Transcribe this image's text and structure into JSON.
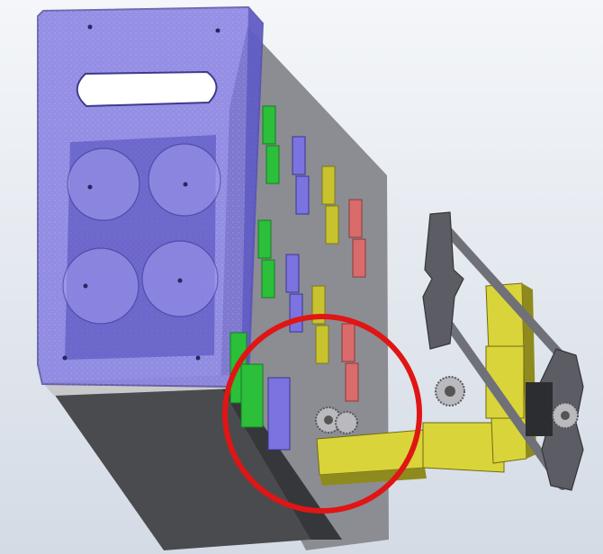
{
  "viewport": {
    "background_top": "#f4f6f9",
    "background_bottom": "#d4dbe5"
  },
  "scene": {
    "housing": {
      "front_color": "#7b74e0",
      "front_opacity": 0.78,
      "panel_color": "#8b8d93",
      "bottom_color": "#4a4b4f",
      "shelf_color": "#c9c9cc"
    },
    "compartments": {
      "green": "#2bbf3a",
      "purple": "#7b74e0",
      "yellow": "#c8c22e",
      "red": "#d96b6b"
    },
    "mechanism": {
      "bracket_color": "#d9d43a",
      "bracket_shadow": "#8f8a1e",
      "rod_color": "#6f7078",
      "mount_color": "#5c5d64",
      "gear_color": "#b9b9be"
    },
    "highlight": {
      "color": "#e01515",
      "shape": "circle"
    }
  }
}
